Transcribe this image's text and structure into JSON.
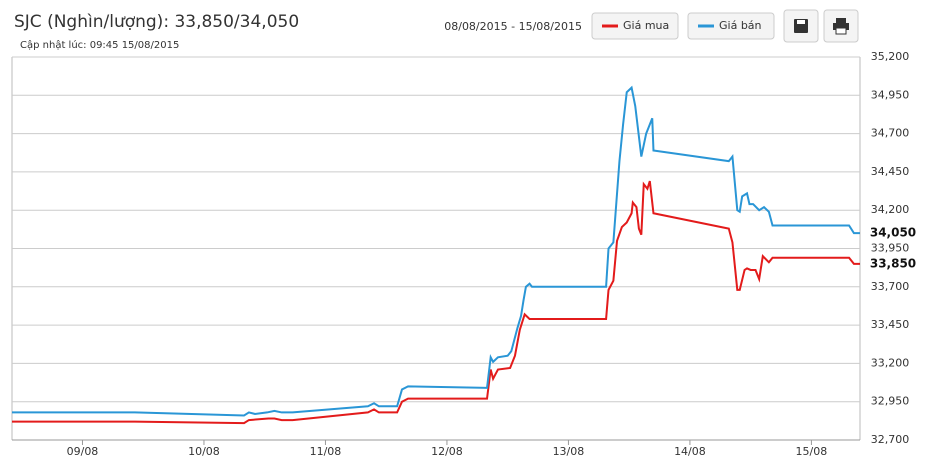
{
  "chart_data": {
    "type": "line",
    "title": "SJC (Nghìn/lượng): 33,850/34,050",
    "subtitle": "Cập nhật lúc: 09:45 15/08/2015",
    "date_range": "08/08/2015 - 15/08/2015",
    "xlim": [
      8.42,
      15.4
    ],
    "xticks": [
      {
        "value": 9,
        "label": "09/08"
      },
      {
        "value": 10,
        "label": "10/08"
      },
      {
        "value": 11,
        "label": "11/08"
      },
      {
        "value": 12,
        "label": "12/08"
      },
      {
        "value": 13,
        "label": "13/08"
      },
      {
        "value": 14,
        "label": "14/08"
      },
      {
        "value": 15,
        "label": "15/08"
      }
    ],
    "ylim": [
      32700,
      35200
    ],
    "yticks": [
      {
        "value": 32700,
        "label": "32,700"
      },
      {
        "value": 32950,
        "label": "32,950"
      },
      {
        "value": 33200,
        "label": "33,200"
      },
      {
        "value": 33450,
        "label": "33,450"
      },
      {
        "value": 33700,
        "label": "33,700"
      },
      {
        "value": 33950,
        "label": "33,950"
      },
      {
        "value": 34200,
        "label": "34,200"
      },
      {
        "value": 34450,
        "label": "34,450"
      },
      {
        "value": 34700,
        "label": "34,700"
      },
      {
        "value": 34950,
        "label": "34,950"
      },
      {
        "value": 35200,
        "label": "35,200"
      }
    ],
    "grid": true,
    "annotations": [
      {
        "value": 34050,
        "label": "34,050"
      },
      {
        "value": 33850,
        "label": "33,850"
      }
    ],
    "series": [
      {
        "name": "Giá mua",
        "color": "#e31b1b",
        "x": [
          8.42,
          9.43,
          10.33,
          10.37,
          10.53,
          10.58,
          10.64,
          10.73,
          11.35,
          11.4,
          11.44,
          11.59,
          11.63,
          11.68,
          12.33,
          12.36,
          12.38,
          12.42,
          12.52,
          12.56,
          12.6,
          12.64,
          12.68,
          12.7,
          13.31,
          13.33,
          13.37,
          13.4,
          13.44,
          13.48,
          13.52,
          13.53,
          13.56,
          13.58,
          13.6,
          13.62,
          13.65,
          13.67,
          13.7,
          14.32,
          14.35,
          14.39,
          14.41,
          14.45,
          14.47,
          14.5,
          14.54,
          14.57,
          14.6,
          14.65,
          14.68,
          15.31,
          15.35,
          15.4
        ],
        "values": [
          32820,
          32820,
          32810,
          32830,
          32840,
          32840,
          32830,
          32830,
          32880,
          32900,
          32880,
          32880,
          32950,
          32970,
          32970,
          33160,
          33100,
          33160,
          33170,
          33250,
          33420,
          33520,
          33490,
          33490,
          33490,
          33680,
          33740,
          34000,
          34090,
          34120,
          34180,
          34250,
          34220,
          34080,
          34040,
          34370,
          34340,
          34390,
          34180,
          34080,
          33990,
          33680,
          33680,
          33810,
          33820,
          33810,
          33810,
          33750,
          33900,
          33860,
          33890,
          33890,
          33850,
          33850
        ]
      },
      {
        "name": "Giá bán",
        "color": "#2a96d6",
        "x": [
          8.42,
          9.43,
          10.33,
          10.37,
          10.42,
          10.52,
          10.58,
          10.64,
          10.73,
          11.35,
          11.4,
          11.44,
          11.59,
          11.63,
          11.68,
          12.33,
          12.36,
          12.38,
          12.42,
          12.5,
          12.53,
          12.58,
          12.61,
          12.63,
          12.65,
          12.68,
          12.7,
          13.31,
          13.33,
          13.37,
          13.42,
          13.45,
          13.48,
          13.52,
          13.55,
          13.6,
          13.64,
          13.69,
          13.7,
          14.32,
          14.35,
          14.39,
          14.41,
          14.43,
          14.47,
          14.49,
          14.52,
          14.57,
          14.61,
          14.65,
          14.68,
          15.31,
          15.35,
          15.4
        ],
        "values": [
          32880,
          32880,
          32860,
          32880,
          32870,
          32880,
          32890,
          32880,
          32880,
          32920,
          32940,
          32920,
          32920,
          33030,
          33050,
          33040,
          33240,
          33210,
          33240,
          33250,
          33280,
          33430,
          33510,
          33610,
          33700,
          33720,
          33700,
          33700,
          33950,
          33990,
          34520,
          34760,
          34970,
          35000,
          34880,
          34550,
          34700,
          34800,
          34590,
          34520,
          34550,
          34200,
          34190,
          34290,
          34310,
          34240,
          34240,
          34200,
          34220,
          34190,
          34100,
          34100,
          34050,
          34050
        ]
      }
    ]
  }
}
